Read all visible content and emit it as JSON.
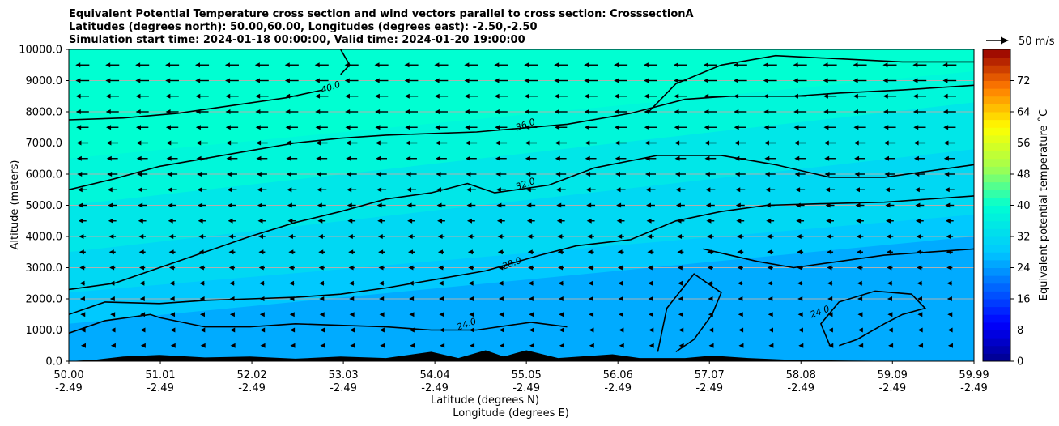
{
  "chart_data": {
    "type": "contour",
    "title_lines": [
      "Equivalent Potential Temperature cross section and wind vectors parallel to cross section: CrosssectionA",
      "Latitudes (degrees north): 50.00,60.00, Longitudes (degrees east): -2.50,-2.50",
      "Simulation start time: 2024-01-18 00:00:00, Valid time: 2024-01-20 19:00:00"
    ],
    "ylabel": "Altitude (meters)",
    "xlabel_lat": "Latitude (degrees N)",
    "xlabel_lon": "Longitude (degrees E)",
    "xlim": [
      50.0,
      59.99
    ],
    "ylim": [
      0,
      10000
    ],
    "x_ticks": [
      {
        "value": 50.0,
        "lat": "50.00",
        "lon": "-2.49"
      },
      {
        "value": 51.01,
        "lat": "51.01",
        "lon": "-2.49"
      },
      {
        "value": 52.02,
        "lat": "52.02",
        "lon": "-2.49"
      },
      {
        "value": 53.03,
        "lat": "53.03",
        "lon": "-2.49"
      },
      {
        "value": 54.04,
        "lat": "54.04",
        "lon": "-2.49"
      },
      {
        "value": 55.05,
        "lat": "55.05",
        "lon": "-2.49"
      },
      {
        "value": 56.06,
        "lat": "56.06",
        "lon": "-2.49"
      },
      {
        "value": 57.07,
        "lat": "57.07",
        "lon": "-2.49"
      },
      {
        "value": 58.08,
        "lat": "58.08",
        "lon": "-2.49"
      },
      {
        "value": 59.09,
        "lat": "59.09",
        "lon": "-2.49"
      },
      {
        "value": 59.99,
        "lat": "59.99",
        "lon": "-2.49"
      }
    ],
    "y_ticks": [
      {
        "value": 0,
        "label": "0.0"
      },
      {
        "value": 1000,
        "label": "1000.0"
      },
      {
        "value": 2000,
        "label": "2000.0"
      },
      {
        "value": 3000,
        "label": "3000.0"
      },
      {
        "value": 4000,
        "label": "4000.0"
      },
      {
        "value": 5000,
        "label": "5000.0"
      },
      {
        "value": 6000,
        "label": "6000.0"
      },
      {
        "value": 7000,
        "label": "7000.0"
      },
      {
        "value": 8000,
        "label": "8000.0"
      },
      {
        "value": 9000,
        "label": "9000.0"
      },
      {
        "value": 10000,
        "label": "10000.0"
      }
    ],
    "grid": "horizontal",
    "colorbar": {
      "label": "Equivalent potential temperature ˚C",
      "min": 0,
      "max": 80,
      "tick_values": [
        0,
        8,
        16,
        24,
        32,
        40,
        48,
        56,
        64,
        72
      ],
      "tick_labels": [
        "0",
        "8",
        "16",
        "24",
        "32",
        "40",
        "48",
        "56",
        "64",
        "72"
      ]
    },
    "wind_key_label": "50 m/s",
    "field_bands": [
      {
        "theta_e": 40,
        "lat_start": 50.0,
        "alt_start": 7700,
        "lat_end": 59.99,
        "alt_end": 10000
      },
      {
        "theta_e": 38,
        "lat_start": 50.0,
        "alt_start": 6500,
        "lat_end": 59.99,
        "alt_end": 9300
      },
      {
        "theta_e": 34,
        "lat_start": 50.0,
        "alt_start": 5000,
        "lat_end": 59.99,
        "alt_end": 8300
      },
      {
        "theta_e": 31,
        "lat_start": 50.0,
        "alt_start": 3500,
        "lat_end": 59.99,
        "alt_end": 6800
      },
      {
        "theta_e": 28,
        "lat_start": 50.0,
        "alt_start": 2200,
        "lat_end": 59.99,
        "alt_end": 4700
      },
      {
        "theta_e": 25,
        "lat_start": 50.0,
        "alt_start": 1200,
        "lat_end": 59.99,
        "alt_end": 4000
      },
      {
        "theta_e": 23,
        "lat_start": 50.0,
        "alt_start": 0,
        "lat_end": 59.99,
        "alt_end": 0
      }
    ],
    "contours": [
      {
        "level": 40.0,
        "label": "40.0",
        "label_at": [
          52.9,
          8700
        ],
        "points": [
          [
            50.0,
            7740
          ],
          [
            50.6,
            7800
          ],
          [
            51.2,
            7950
          ],
          [
            51.8,
            8200
          ],
          [
            52.4,
            8450
          ],
          [
            52.8,
            8700
          ]
        ]
      },
      {
        "level": 40.0,
        "label": "",
        "points": [
          [
            53.0,
            10000
          ],
          [
            53.1,
            9500
          ],
          [
            53.0,
            9200
          ]
        ]
      },
      {
        "level": 36.0,
        "label": "36.0",
        "label_at": [
          55.05,
          7500
        ],
        "points": [
          [
            50.0,
            5500
          ],
          [
            50.5,
            5850
          ],
          [
            51.0,
            6250
          ],
          [
            51.5,
            6500
          ],
          [
            52.0,
            6750
          ],
          [
            52.5,
            7000
          ],
          [
            53.0,
            7150
          ],
          [
            53.5,
            7250
          ],
          [
            54.0,
            7300
          ],
          [
            54.5,
            7350
          ],
          [
            55.5,
            7600
          ],
          [
            56.2,
            7950
          ],
          [
            56.8,
            8400
          ],
          [
            57.3,
            8500
          ],
          [
            58.0,
            8500
          ],
          [
            58.5,
            8600
          ],
          [
            59.2,
            8700
          ],
          [
            59.99,
            8850
          ]
        ]
      },
      {
        "level": 36.0,
        "label": "",
        "points": [
          [
            56.4,
            8000
          ],
          [
            56.7,
            8900
          ],
          [
            57.2,
            9500
          ],
          [
            57.8,
            9800
          ],
          [
            58.5,
            9700
          ],
          [
            59.2,
            9600
          ],
          [
            59.99,
            9600
          ]
        ]
      },
      {
        "level": 32.0,
        "label": "32.0",
        "label_at": [
          55.05,
          5600
        ],
        "points": [
          [
            50.0,
            2300
          ],
          [
            50.5,
            2500
          ],
          [
            51.0,
            3000
          ],
          [
            51.5,
            3500
          ],
          [
            52.0,
            4000
          ],
          [
            52.5,
            4450
          ],
          [
            53.0,
            4800
          ],
          [
            53.5,
            5200
          ],
          [
            54.0,
            5400
          ],
          [
            54.4,
            5700
          ],
          [
            54.7,
            5400
          ],
          [
            55.3,
            5650
          ],
          [
            55.8,
            6200
          ],
          [
            56.5,
            6600
          ],
          [
            57.2,
            6600
          ],
          [
            57.8,
            6300
          ],
          [
            58.4,
            5900
          ],
          [
            59.0,
            5900
          ],
          [
            59.99,
            6300
          ]
        ]
      },
      {
        "level": 28.0,
        "label": "28.0",
        "label_at": [
          54.9,
          3050
        ],
        "points": [
          [
            50.0,
            1500
          ],
          [
            50.4,
            1900
          ],
          [
            51.0,
            1850
          ],
          [
            51.5,
            1950
          ],
          [
            52.0,
            2000
          ],
          [
            52.5,
            2050
          ],
          [
            53.0,
            2150
          ],
          [
            53.5,
            2350
          ],
          [
            54.0,
            2600
          ],
          [
            54.6,
            2900
          ],
          [
            55.2,
            3400
          ],
          [
            55.6,
            3700
          ],
          [
            56.2,
            3900
          ],
          [
            56.7,
            4500
          ],
          [
            57.2,
            4800
          ],
          [
            57.7,
            5000
          ],
          [
            58.3,
            5050
          ],
          [
            59.0,
            5100
          ],
          [
            59.99,
            5300
          ]
        ]
      },
      {
        "level": 28.0,
        "label": "",
        "points": [
          [
            57.0,
            3600
          ],
          [
            57.6,
            3200
          ],
          [
            58.0,
            3000
          ],
          [
            58.5,
            3200
          ],
          [
            59.0,
            3400
          ],
          [
            59.99,
            3600
          ]
        ]
      },
      {
        "level": 24.0,
        "label": "24.0",
        "label_at": [
          54.4,
          1100
        ],
        "points": [
          [
            50.0,
            900
          ],
          [
            50.4,
            1300
          ],
          [
            50.9,
            1500
          ],
          [
            51.0,
            1400
          ],
          [
            51.5,
            1100
          ],
          [
            52.0,
            1100
          ],
          [
            52.5,
            1200
          ],
          [
            53.0,
            1150
          ],
          [
            53.5,
            1100
          ],
          [
            54.0,
            1000
          ],
          [
            54.5,
            1000
          ],
          [
            55.1,
            1250
          ],
          [
            55.5,
            1100
          ]
        ]
      },
      {
        "level": 24.0,
        "label": "",
        "points": [
          [
            56.5,
            300
          ],
          [
            56.6,
            1700
          ],
          [
            56.9,
            2800
          ],
          [
            57.2,
            2200
          ],
          [
            57.1,
            1500
          ],
          [
            56.9,
            700
          ],
          [
            56.7,
            300
          ]
        ]
      },
      {
        "level": 24.0,
        "label": "24.0",
        "label_at": [
          58.3,
          1500
        ],
        "points": [
          [
            58.4,
            500
          ],
          [
            58.3,
            1200
          ],
          [
            58.5,
            1900
          ],
          [
            58.9,
            2250
          ],
          [
            59.3,
            2150
          ],
          [
            59.45,
            1700
          ],
          [
            59.2,
            1500
          ],
          [
            59.0,
            1200
          ],
          [
            58.7,
            700
          ],
          [
            58.5,
            500
          ]
        ]
      }
    ],
    "terrain": [
      [
        50.0,
        0
      ],
      [
        50.3,
        50
      ],
      [
        50.6,
        150
      ],
      [
        51.0,
        200
      ],
      [
        51.5,
        120
      ],
      [
        52.0,
        150
      ],
      [
        52.5,
        80
      ],
      [
        53.0,
        150
      ],
      [
        53.5,
        100
      ],
      [
        54.0,
        300
      ],
      [
        54.3,
        100
      ],
      [
        54.6,
        350
      ],
      [
        54.8,
        150
      ],
      [
        55.05,
        350
      ],
      [
        55.4,
        100
      ],
      [
        56.0,
        220
      ],
      [
        56.3,
        100
      ],
      [
        56.8,
        100
      ],
      [
        57.1,
        180
      ],
      [
        57.5,
        100
      ],
      [
        58.0,
        40
      ],
      [
        58.6,
        20
      ],
      [
        59.5,
        0
      ],
      [
        59.99,
        0
      ]
    ],
    "wind": {
      "note": "flow mostly from the north (arrows point south/left)",
      "speed_levels_ms": [
        25,
        20,
        18,
        15,
        12,
        10,
        8,
        5
      ],
      "speed_at_alt_m": [
        {
          "alt": 10000,
          "speed": 24
        },
        {
          "alt": 8000,
          "speed": 22
        },
        {
          "alt": 6000,
          "speed": 18
        },
        {
          "alt": 4000,
          "speed": 12
        },
        {
          "alt": 2000,
          "speed": 8
        },
        {
          "alt": 0,
          "speed": 4
        }
      ]
    }
  }
}
